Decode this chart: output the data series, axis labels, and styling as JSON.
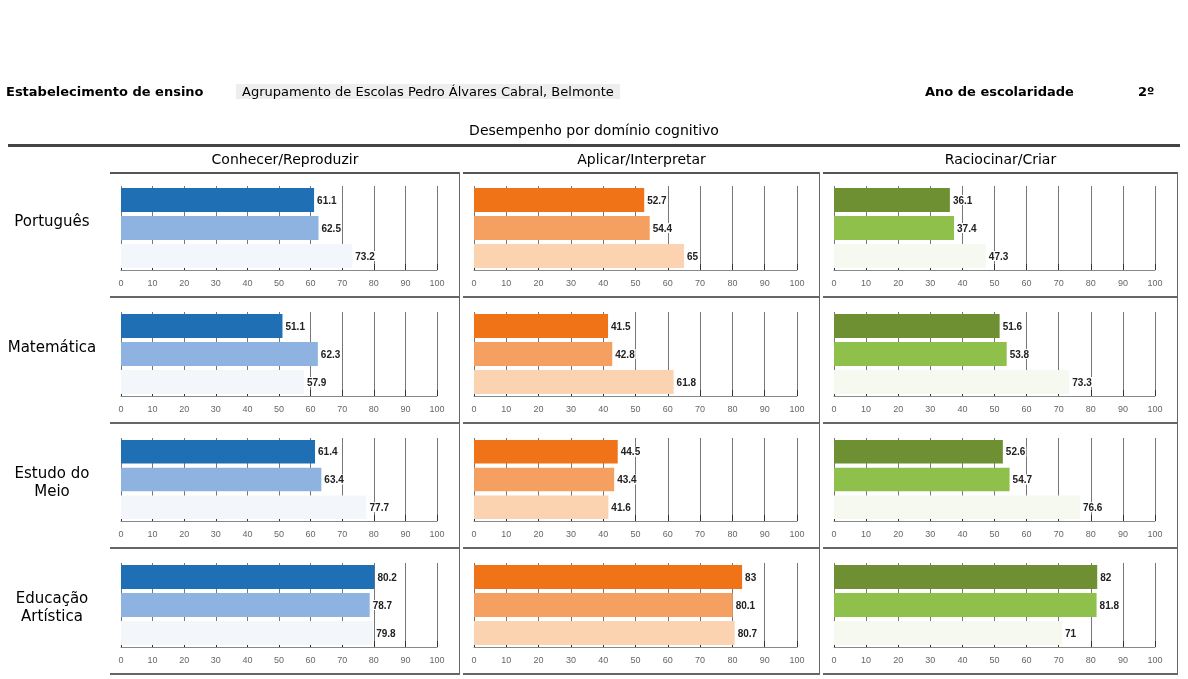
{
  "chart_data": [
    {
      "type": "other",
      "title": "Desempenho por domínio cognitivo",
      "annotations": [
        "Estabelecimento de ensino",
        "Agrupamento de Escolas Pedro Álvares Cabral, Belmonte",
        "Ano de escolaridade",
        "2º"
      ]
    },
    {
      "type": "bar",
      "orientation": "horizontal",
      "title": "Conhecer/Reproduzir",
      "ylabel": "Português",
      "categories": [
        null,
        null,
        null
      ],
      "values": [
        61.1,
        62.5,
        73.2
      ],
      "colors": [
        "#1f6fb5",
        "#8fb3e0",
        "#f3f7fc"
      ],
      "xlim": [
        0,
        100
      ],
      "xticks": [
        0,
        10,
        20,
        30,
        40,
        50,
        60,
        70,
        80,
        90,
        100
      ],
      "grid": "x",
      "data_labels": true
    },
    {
      "type": "bar",
      "orientation": "horizontal",
      "title": "Aplicar/Interpretar",
      "categories": [
        null,
        null,
        null
      ],
      "values": [
        52.7,
        54.4,
        65
      ],
      "colors": [
        "#f07318",
        "#f5a060",
        "#fbd3b0"
      ],
      "xlim": [
        0,
        100
      ],
      "xticks": [
        0,
        10,
        20,
        30,
        40,
        50,
        60,
        70,
        80,
        90,
        100
      ],
      "grid": "x",
      "data_labels": true
    },
    {
      "type": "bar",
      "orientation": "horizontal",
      "title": "Raciocinar/Criar",
      "categories": [
        null,
        null,
        null
      ],
      "values": [
        36.1,
        37.4,
        47.3
      ],
      "colors": [
        "#6e8f32",
        "#8fc04c",
        "#f5f9ef"
      ],
      "xlim": [
        0,
        100
      ],
      "xticks": [
        0,
        10,
        20,
        30,
        40,
        50,
        60,
        70,
        80,
        90,
        100
      ],
      "grid": "x",
      "data_labels": true
    },
    {
      "type": "bar",
      "orientation": "horizontal",
      "ylabel": "Matemática",
      "categories": [
        null,
        null,
        null
      ],
      "values": [
        51.1,
        62.3,
        57.9
      ],
      "colors": [
        "#1f6fb5",
        "#8fb3e0",
        "#f3f7fc"
      ],
      "xlim": [
        0,
        100
      ],
      "xticks": [
        0,
        10,
        20,
        30,
        40,
        50,
        60,
        70,
        80,
        90,
        100
      ],
      "grid": "x",
      "data_labels": true
    },
    {
      "type": "bar",
      "orientation": "horizontal",
      "categories": [
        null,
        null,
        null
      ],
      "values": [
        41.5,
        42.8,
        61.8
      ],
      "colors": [
        "#f07318",
        "#f5a060",
        "#fbd3b0"
      ],
      "xlim": [
        0,
        100
      ],
      "xticks": [
        0,
        10,
        20,
        30,
        40,
        50,
        60,
        70,
        80,
        90,
        100
      ],
      "grid": "x",
      "data_labels": true
    },
    {
      "type": "bar",
      "orientation": "horizontal",
      "categories": [
        null,
        null,
        null
      ],
      "values": [
        51.6,
        53.8,
        73.3
      ],
      "colors": [
        "#6e8f32",
        "#8fc04c",
        "#f5f9ef"
      ],
      "xlim": [
        0,
        100
      ],
      "xticks": [
        0,
        10,
        20,
        30,
        40,
        50,
        60,
        70,
        80,
        90,
        100
      ],
      "grid": "x",
      "data_labels": true
    },
    {
      "type": "bar",
      "orientation": "horizontal",
      "ylabel": "Estudo do Meio",
      "categories": [
        null,
        null,
        null
      ],
      "values": [
        61.4,
        63.4,
        77.7
      ],
      "colors": [
        "#1f6fb5",
        "#8fb3e0",
        "#f3f7fc"
      ],
      "xlim": [
        0,
        100
      ],
      "xticks": [
        0,
        10,
        20,
        30,
        40,
        50,
        60,
        70,
        80,
        90,
        100
      ],
      "grid": "x",
      "data_labels": true
    },
    {
      "type": "bar",
      "orientation": "horizontal",
      "categories": [
        null,
        null,
        null
      ],
      "values": [
        44.5,
        43.4,
        41.6
      ],
      "colors": [
        "#f07318",
        "#f5a060",
        "#fbd3b0"
      ],
      "xlim": [
        0,
        100
      ],
      "xticks": [
        0,
        10,
        20,
        30,
        40,
        50,
        60,
        70,
        80,
        90,
        100
      ],
      "grid": "x",
      "data_labels": true
    },
    {
      "type": "bar",
      "orientation": "horizontal",
      "categories": [
        null,
        null,
        null
      ],
      "values": [
        52.6,
        54.7,
        76.6
      ],
      "colors": [
        "#6e8f32",
        "#8fc04c",
        "#f5f9ef"
      ],
      "xlim": [
        0,
        100
      ],
      "xticks": [
        0,
        10,
        20,
        30,
        40,
        50,
        60,
        70,
        80,
        90,
        100
      ],
      "grid": "x",
      "data_labels": true
    },
    {
      "type": "bar",
      "orientation": "horizontal",
      "ylabel": "Educação Artística",
      "categories": [
        null,
        null,
        null
      ],
      "values": [
        80.2,
        78.7,
        79.8
      ],
      "colors": [
        "#1f6fb5",
        "#8fb3e0",
        "#f3f7fc"
      ],
      "xlim": [
        0,
        100
      ],
      "xticks": [
        0,
        10,
        20,
        30,
        40,
        50,
        60,
        70,
        80,
        90,
        100
      ],
      "grid": "x",
      "data_labels": true
    },
    {
      "type": "bar",
      "orientation": "horizontal",
      "categories": [
        null,
        null,
        null
      ],
      "values": [
        83,
        80.1,
        80.7
      ],
      "colors": [
        "#f07318",
        "#f5a060",
        "#fbd3b0"
      ],
      "xlim": [
        0,
        100
      ],
      "xticks": [
        0,
        10,
        20,
        30,
        40,
        50,
        60,
        70,
        80,
        90,
        100
      ],
      "grid": "x",
      "data_labels": true
    },
    {
      "type": "bar",
      "orientation": "horizontal",
      "categories": [
        null,
        null,
        null
      ],
      "values": [
        82,
        81.8,
        71
      ],
      "colors": [
        "#6e8f32",
        "#8fc04c",
        "#f5f9ef"
      ],
      "xlim": [
        0,
        100
      ],
      "xticks": [
        0,
        10,
        20,
        30,
        40,
        50,
        60,
        70,
        80,
        90,
        100
      ],
      "grid": "x",
      "data_labels": true
    }
  ]
}
